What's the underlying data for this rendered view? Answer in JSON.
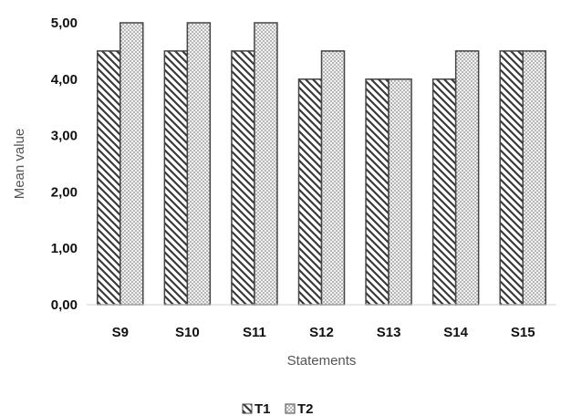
{
  "chart_data": {
    "type": "bar",
    "categories": [
      "S9",
      "S10",
      "S11",
      "S12",
      "S13",
      "S14",
      "S15"
    ],
    "series": [
      {
        "name": "T1",
        "values": [
          4.5,
          4.5,
          4.5,
          4.0,
          4.0,
          4.0,
          4.5
        ]
      },
      {
        "name": "T2",
        "values": [
          5.0,
          5.0,
          5.0,
          4.5,
          4.0,
          4.5,
          4.5
        ]
      }
    ],
    "xlabel": "Statements",
    "ylabel": "Mean value",
    "ylim": [
      0,
      5
    ],
    "yticks": [
      "0,00",
      "1,00",
      "2,00",
      "3,00",
      "4,00",
      "5,00"
    ],
    "grid": false,
    "legend_position": "bottom"
  }
}
